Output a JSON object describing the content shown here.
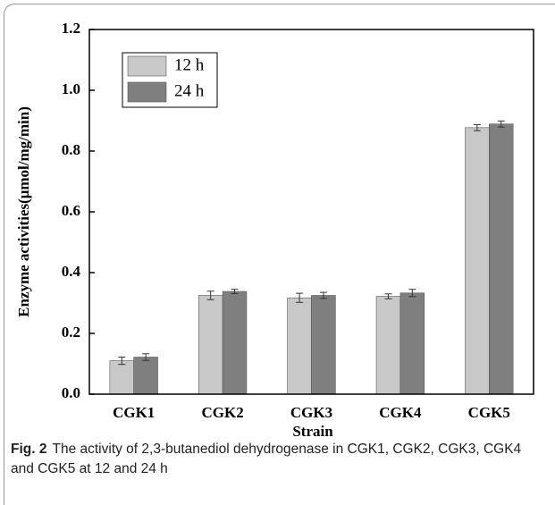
{
  "chart_data": {
    "type": "bar",
    "x_label": "Strain",
    "y_label": "Enzyme activities(μmol/mg/min)",
    "categories": [
      "CGK1",
      "CGK2",
      "CGK3",
      "CGK4",
      "CGK5"
    ],
    "series": [
      {
        "name": "12 h",
        "color": "#c8c8c8",
        "values": [
          0.11,
          0.325,
          0.317,
          0.322,
          0.877
        ],
        "errors": [
          0.012,
          0.014,
          0.015,
          0.008,
          0.01
        ]
      },
      {
        "name": "24 h",
        "color": "#7f7f7f",
        "values": [
          0.122,
          0.338,
          0.325,
          0.333,
          0.889
        ],
        "errors": [
          0.011,
          0.007,
          0.01,
          0.012,
          0.01
        ]
      }
    ],
    "ylim": [
      0,
      1.2
    ],
    "yticks": [
      {
        "value": 0,
        "label": "0.0"
      },
      0.2,
      0.4,
      0.6,
      0.8,
      {
        "value": 1,
        "label": "1.0"
      },
      1.2
    ],
    "legend": "upper left"
  },
  "caption": {
    "label": "Fig. 2",
    "text": "The activity of 2,3-butanediol dehydrogenase in CGK1, CGK2, CGK3, CGK4 and CGK5 at 12 and 24 h"
  }
}
